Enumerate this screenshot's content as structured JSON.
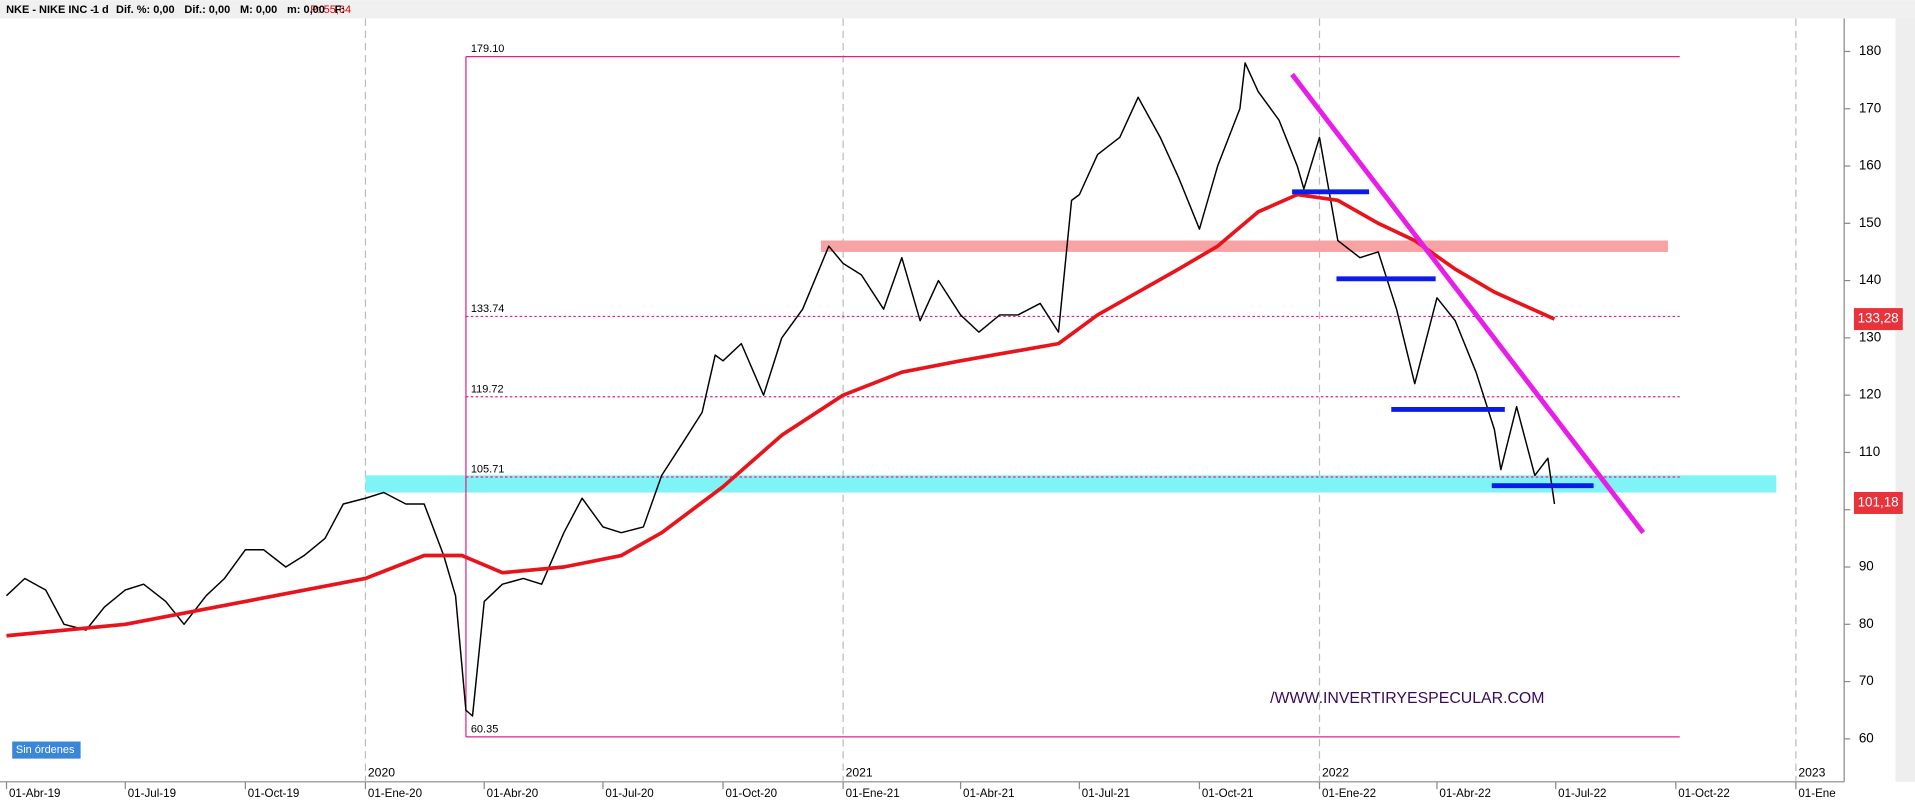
{
  "header": {
    "symbol": "NKE - NIKE INC -",
    "period": "1 d",
    "stats": [
      "Dif. %: 0,00",
      "Dif.: 0,00",
      "M: 0,00",
      "m: 0,00",
      "F:"
    ],
    "price": "P: 55,64"
  },
  "status": "Sin órdenes",
  "chart_data": {
    "type": "line",
    "watermark": "/WWW.INVERTIRYESPECULAR.COM",
    "xlim": [
      "2019-03-27",
      "2023-02-07"
    ],
    "ylim": [
      52.5,
      185.75
    ],
    "yticks": [
      60,
      70,
      80,
      90,
      100,
      110,
      120,
      130,
      140,
      150,
      160,
      170,
      180
    ],
    "xticks": [
      {
        "value": "2019-04-01",
        "label": "01-Abr-19"
      },
      {
        "value": "2019-07-01",
        "label": "01-Jul-19"
      },
      {
        "value": "2019-10-01",
        "label": "01-Oct-19"
      },
      {
        "value": "2020-01-01",
        "label": "01-Ene-20"
      },
      {
        "value": "2020-04-01",
        "label": "01-Abr-20"
      },
      {
        "value": "2020-07-01",
        "label": "01-Jul-20"
      },
      {
        "value": "2020-10-01",
        "label": "01-Oct-20"
      },
      {
        "value": "2021-01-01",
        "label": "01-Ene-21"
      },
      {
        "value": "2021-04-01",
        "label": "01-Abr-21"
      },
      {
        "value": "2021-07-01",
        "label": "01-Jul-21"
      },
      {
        "value": "2021-10-01",
        "label": "01-Oct-21"
      },
      {
        "value": "2022-01-01",
        "label": "01-Ene-22"
      },
      {
        "value": "2022-04-01",
        "label": "01-Abr-22"
      },
      {
        "value": "2022-07-01",
        "label": "01-Jul-22"
      },
      {
        "value": "2022-10-01",
        "label": "01-Oct-22"
      },
      {
        "value": "2023-01-01",
        "label": "01-Ene"
      }
    ],
    "year_ticks": [
      {
        "value": "2020-01-01",
        "label": "2020"
      },
      {
        "value": "2021-01-01",
        "label": "2021"
      },
      {
        "value": "2022-01-01",
        "label": "2022"
      },
      {
        "value": "2023-01-01",
        "label": "2023"
      }
    ],
    "series": [
      {
        "color": "#000000",
        "width": 1.2,
        "x": [
          "2019-04-01",
          "2019-04-15",
          "2019-05-01",
          "2019-05-15",
          "2019-06-01",
          "2019-06-15",
          "2019-07-01",
          "2019-07-15",
          "2019-08-01",
          "2019-08-15",
          "2019-09-01",
          "2019-09-15",
          "2019-10-01",
          "2019-10-15",
          "2019-11-01",
          "2019-11-15",
          "2019-12-01",
          "2019-12-15",
          "2020-01-01",
          "2020-01-15",
          "2020-02-01",
          "2020-02-15",
          "2020-03-01",
          "2020-03-10",
          "2020-03-18",
          "2020-03-23",
          "2020-04-01",
          "2020-04-15",
          "2020-05-01",
          "2020-05-15",
          "2020-06-01",
          "2020-06-15",
          "2020-07-01",
          "2020-07-15",
          "2020-08-01",
          "2020-08-15",
          "2020-09-01",
          "2020-09-15",
          "2020-09-25",
          "2020-10-01",
          "2020-10-15",
          "2020-11-01",
          "2020-11-15",
          "2020-12-01",
          "2020-12-21",
          "2021-01-01",
          "2021-01-15",
          "2021-02-01",
          "2021-02-15",
          "2021-03-01",
          "2021-03-15",
          "2021-04-01",
          "2021-04-15",
          "2021-05-01",
          "2021-05-15",
          "2021-06-01",
          "2021-06-15",
          "2021-06-25",
          "2021-07-01",
          "2021-07-15",
          "2021-08-01",
          "2021-08-15",
          "2021-09-01",
          "2021-09-15",
          "2021-10-01",
          "2021-10-15",
          "2021-11-01",
          "2021-11-05",
          "2021-11-15",
          "2021-12-01",
          "2021-12-15",
          "2021-12-20",
          "2022-01-01",
          "2022-01-15",
          "2022-02-01",
          "2022-02-15",
          "2022-03-01",
          "2022-03-15",
          "2022-04-01",
          "2022-04-15",
          "2022-05-01",
          "2022-05-15",
          "2022-05-20",
          "2022-06-01",
          "2022-06-15",
          "2022-06-25",
          "2022-06-30"
        ],
        "values": [
          85,
          88,
          86,
          80,
          79,
          83,
          86,
          87,
          84,
          80,
          85,
          88,
          93,
          93,
          90,
          92,
          95,
          101,
          102,
          103,
          101,
          101,
          92,
          85,
          65,
          64,
          84,
          87,
          88,
          87,
          96,
          102,
          97,
          96,
          97,
          106,
          112,
          117,
          127,
          126,
          129,
          120,
          130,
          135,
          146,
          143,
          141,
          135,
          144,
          133,
          140,
          134,
          131,
          134,
          134,
          136,
          131,
          154,
          155,
          162,
          165,
          172,
          165,
          158,
          149,
          160,
          170,
          178,
          173,
          168,
          160,
          156,
          165,
          147,
          144,
          145,
          135,
          122,
          137,
          133,
          124,
          114,
          107,
          118,
          106,
          109,
          101
        ]
      },
      {
        "color": "#e8141c",
        "width": 3,
        "x": [
          "2019-04-01",
          "2019-07-01",
          "2019-10-01",
          "2020-01-01",
          "2020-02-15",
          "2020-03-15",
          "2020-04-15",
          "2020-06-01",
          "2020-07-15",
          "2020-08-15",
          "2020-10-01",
          "2020-11-15",
          "2021-01-01",
          "2021-02-15",
          "2021-04-01",
          "2021-06-15",
          "2021-07-15",
          "2021-09-15",
          "2021-10-15",
          "2021-11-15",
          "2021-12-15",
          "2022-01-15",
          "2022-02-15",
          "2022-03-15",
          "2022-04-15",
          "2022-05-15",
          "2022-06-30"
        ],
        "values": [
          78,
          80,
          84,
          88,
          92,
          92,
          89,
          90,
          92,
          96,
          104,
          113,
          120,
          124,
          126,
          129,
          134,
          142,
          146,
          152,
          155,
          154,
          150,
          147,
          142,
          138,
          133.28
        ]
      }
    ],
    "last_labels": [
      {
        "value": 133.28,
        "label": "133,28",
        "color": "#e8333b"
      },
      {
        "value": 101.18,
        "label": "101,18",
        "color": "#e8333b"
      }
    ],
    "fib": {
      "start": "2020-03-18",
      "end": "2022-10-04",
      "color": "#e0208a",
      "levels": [
        {
          "value": 179.1,
          "label": "179.10"
        },
        {
          "value": 133.74,
          "label": "133.74"
        },
        {
          "value": 119.72,
          "label": "119.72"
        },
        {
          "value": 105.71,
          "label": "105.71"
        },
        {
          "value": 60.35,
          "label": "60.35"
        }
      ]
    },
    "bands": [
      {
        "x": [
          "2020-01-01",
          "2022-12-17"
        ],
        "y": [
          103,
          106
        ],
        "color": "#7ff3f5"
      },
      {
        "x": [
          "2020-12-15",
          "2022-09-25"
        ],
        "y": [
          145,
          147
        ],
        "color": "#f7a3a3"
      }
    ],
    "segments": [
      {
        "x": [
          "2021-12-11",
          "2022-02-08"
        ],
        "y": [
          155.5,
          155.5
        ],
        "color": "#0b1be8",
        "width": 4
      },
      {
        "x": [
          "2022-01-14",
          "2022-03-31"
        ],
        "y": [
          140.3,
          140.3
        ],
        "color": "#0b1be8",
        "width": 4
      },
      {
        "x": [
          "2022-02-25",
          "2022-05-23"
        ],
        "y": [
          117.5,
          117.5
        ],
        "color": "#0b1be8",
        "width": 4
      },
      {
        "x": [
          "2022-05-13",
          "2022-07-30"
        ],
        "y": [
          104.2,
          104.2
        ],
        "color": "#0b1be8",
        "width": 4
      },
      {
        "x": [
          "2021-12-11",
          "2022-09-06"
        ],
        "y": [
          176,
          96
        ],
        "color": "#e81ee8",
        "width": 4
      }
    ]
  }
}
